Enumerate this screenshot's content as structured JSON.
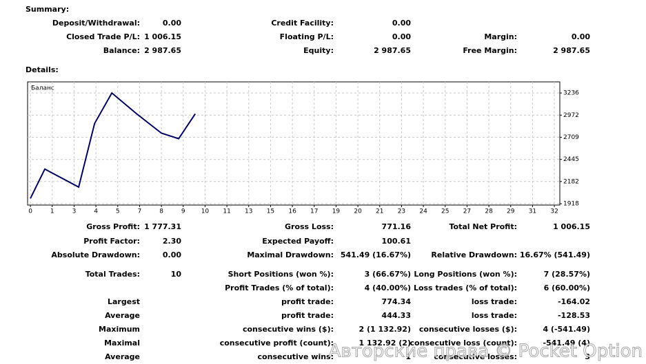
{
  "summary": {
    "title": "Summary:",
    "rows": [
      [
        {
          "label": "Deposit/Withdrawal:",
          "value": "0.00"
        },
        {
          "label": "Credit Facility:",
          "value": "0.00"
        },
        null
      ],
      [
        {
          "label": "Closed Trade P/L:",
          "value": "1 006.15"
        },
        {
          "label": "Floating P/L:",
          "value": "0.00"
        },
        {
          "label": "Margin:",
          "value": "0.00"
        }
      ],
      [
        {
          "label": "Balance:",
          "value": "2 987.65"
        },
        {
          "label": "Equity:",
          "value": "2 987.65"
        },
        {
          "label": "Free Margin:",
          "value": "2 987.65"
        }
      ]
    ]
  },
  "details": {
    "title": "Details:",
    "rows": [
      [
        {
          "label": "Gross Profit:",
          "value": "1 777.31"
        },
        {
          "label": "Gross Loss:",
          "value": "771.16"
        },
        {
          "label": "Total Net Profit:",
          "value": "1 006.15"
        }
      ],
      [
        {
          "label": "Profit Factor:",
          "value": "2.30"
        },
        {
          "label": "Expected Payoff:",
          "value": "100.61"
        },
        null
      ],
      [
        {
          "label": "Absolute Drawdown:",
          "value": "0.00"
        },
        {
          "label": "Maximal Drawdown:",
          "value": "541.49 (16.67%)"
        },
        {
          "label": "Relative Drawdown:",
          "value": "16.67% (541.49)"
        }
      ],
      [
        {
          "label": "Total Trades:",
          "value": "10"
        },
        {
          "label": "Short Positions (won %):",
          "value": "3 (66.67%)"
        },
        {
          "label": "Long Positions (won %):",
          "value": "7 (28.57%)"
        }
      ],
      [
        null,
        {
          "label": "Profit Trades (% of total):",
          "value": "4 (40.00%)"
        },
        {
          "label": "Loss trades (% of total):",
          "value": "6 (60.00%)"
        }
      ],
      [
        {
          "label": "Largest"
        },
        {
          "label": "profit trade:",
          "value": "774.34"
        },
        {
          "label": "loss trade:",
          "value": "-164.02"
        }
      ],
      [
        {
          "label": "Average"
        },
        {
          "label": "profit trade:",
          "value": "444.33"
        },
        {
          "label": "loss trade:",
          "value": "-128.53"
        }
      ],
      [
        {
          "label": "Maximum"
        },
        {
          "label": "consecutive wins ($):",
          "value": "2 (1 132.92)"
        },
        {
          "label": "consecutive losses ($):",
          "value": "4 (-541.49)"
        }
      ],
      [
        {
          "label": "Maximal"
        },
        {
          "label": "consecutive profit (count):",
          "value": "1 132.92 (2)"
        },
        {
          "label": "consecutive loss (count):",
          "value": "-541.49 (4)"
        }
      ],
      [
        {
          "label": "Average"
        },
        {
          "label": "consecutive wins:",
          "value": "1"
        },
        {
          "label": "consecutive losses:",
          "value": "3"
        }
      ]
    ]
  },
  "chart_data": {
    "type": "line",
    "title": "Баланс",
    "color": "#000066",
    "grid": true,
    "x": [
      0,
      0.66,
      2.21,
      2.94,
      3.73,
      4.86,
      6.0,
      6.79,
      7.55
    ],
    "values": [
      1981.5,
      2330,
      2116,
      2873,
      3236,
      2989,
      2758,
      2692,
      2987.65
    ],
    "xlim": [
      -0.13,
      24.25
    ],
    "xticks": [
      0,
      {
        "value": 1,
        "label": "1"
      },
      {
        "value": 2,
        "label": "3"
      },
      {
        "value": 3,
        "label": "4"
      },
      {
        "value": 4,
        "label": "5"
      },
      {
        "value": 5,
        "label": "7"
      },
      {
        "value": 6,
        "label": "8"
      },
      {
        "value": 7,
        "label": "9"
      },
      {
        "value": 8,
        "label": "10"
      },
      {
        "value": 9,
        "label": "11"
      },
      {
        "value": 10,
        "label": "13"
      },
      {
        "value": 11,
        "label": "15"
      },
      {
        "value": 12,
        "label": "16"
      },
      {
        "value": 13,
        "label": "17"
      },
      {
        "value": 14,
        "label": "19"
      },
      {
        "value": 15,
        "label": "20"
      },
      {
        "value": 16,
        "label": "21"
      },
      {
        "value": 17,
        "label": "23"
      },
      {
        "value": 18,
        "label": "24"
      },
      {
        "value": 19,
        "label": "25"
      },
      {
        "value": 20,
        "label": "27"
      },
      {
        "value": 21,
        "label": "28"
      },
      {
        "value": 22,
        "label": "29"
      },
      {
        "value": 23,
        "label": "31"
      },
      {
        "value": 24,
        "label": "32"
      }
    ],
    "ylim": [
      1902,
      3368
    ],
    "yticks": [
      1918,
      2182,
      2445,
      2709,
      2972,
      3236
    ]
  },
  "watermark": "Авторские права © Pocket Option"
}
